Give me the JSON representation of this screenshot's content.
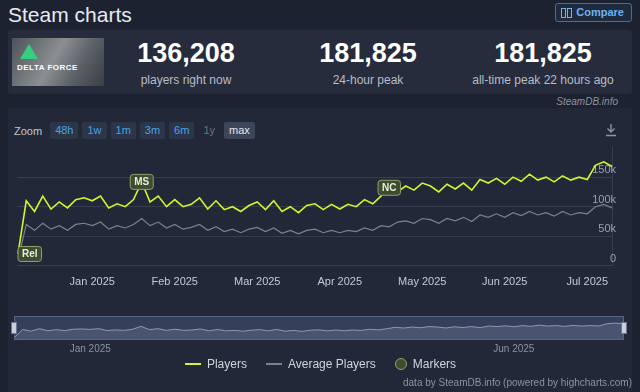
{
  "header": {
    "title": "Steam charts",
    "button": "Compare",
    "game_image_text": "DELTA FORCE"
  },
  "stats": [
    {
      "value": "136,208",
      "label": "players right now"
    },
    {
      "value": "181,825",
      "label": "24-hour peak"
    },
    {
      "value": "181,825",
      "label": "all-time peak 22 hours ago"
    }
  ],
  "chart_panel": {
    "watermark": "SteamDB.info",
    "zoom": {
      "label": "Zoom",
      "buttons": [
        "48h",
        "1w",
        "1m",
        "3m",
        "6m",
        "1y",
        "max"
      ],
      "disabled": "1y",
      "selected": "max"
    },
    "credit": "data by SteamDB.info (powered by highcharts.com)"
  },
  "chart_data": [
    {
      "type": "line",
      "categories": [
        null,
        null,
        null,
        null,
        null,
        null,
        null,
        null,
        null,
        "Jan 2025",
        null,
        null,
        null,
        null,
        null,
        null,
        null,
        null,
        null,
        "Feb 2025",
        null,
        null,
        null,
        null,
        null,
        null,
        null,
        null,
        null,
        "Mar 2025",
        null,
        null,
        null,
        null,
        null,
        null,
        null,
        null,
        null,
        "Apr 2025",
        null,
        null,
        null,
        null,
        null,
        null,
        null,
        null,
        null,
        "May 2025",
        null,
        null,
        null,
        null,
        null,
        null,
        null,
        null,
        null,
        "Jun 2025",
        null,
        null,
        null,
        null,
        null,
        null,
        null,
        null,
        null,
        "Jul 2025",
        null,
        null,
        null
      ],
      "series": [
        {
          "name": "Players",
          "color": "#d4f52c",
          "line_style": "solid",
          "values": [
            20000,
            110000,
            92000,
            118000,
            96000,
            108000,
            98000,
            112000,
            115000,
            110000,
            118000,
            98000,
            105000,
            100000,
            112000,
            142000,
            108000,
            118000,
            100000,
            112000,
            100000,
            104000,
            115000,
            96000,
            110000,
            95000,
            100000,
            92000,
            102000,
            108000,
            95000,
            110000,
            92000,
            100000,
            90000,
            102000,
            105000,
            95000,
            104000,
            96000,
            104000,
            100000,
            112000,
            105000,
            118000,
            132000,
            125000,
            135000,
            128000,
            140000,
            135000,
            125000,
            138000,
            130000,
            140000,
            128000,
            146000,
            140000,
            148000,
            138000,
            150000,
            143000,
            155000,
            145000,
            150000,
            142000,
            152000,
            145000,
            150000,
            146000,
            170000,
            176000,
            168000
          ]
        },
        {
          "name": "Average Players",
          "color": "#7b818e",
          "line_style": "solid",
          "values": [
            10000,
            70000,
            60000,
            72000,
            62000,
            68000,
            60000,
            70000,
            72000,
            68000,
            74000,
            62000,
            68000,
            64000,
            70000,
            80000,
            68000,
            74000,
            64000,
            70000,
            62000,
            65000,
            70000,
            60000,
            66000,
            58000,
            62000,
            56000,
            62000,
            65000,
            58000,
            64000,
            55000,
            60000,
            54000,
            60000,
            62000,
            56000,
            60000,
            56000,
            60000,
            58000,
            64000,
            60000,
            68000,
            66000,
            74000,
            76000,
            72000,
            80000,
            78000,
            72000,
            80000,
            76000,
            82000,
            75000,
            86000,
            82000,
            88000,
            82000,
            90000,
            85000,
            92000,
            86000,
            90000,
            84000,
            92000,
            86000,
            90000,
            88000,
            100000,
            104000,
            98000
          ]
        },
        {
          "name": "Markers",
          "color": "#3e4d30",
          "type": "scatter",
          "marker": "circle",
          "data_labels": true,
          "values": [
            20000,
            null,
            null,
            null,
            null,
            null,
            null,
            null,
            null,
            null,
            null,
            null,
            null,
            null,
            null,
            142000,
            null,
            null,
            null,
            null,
            null,
            null,
            null,
            null,
            null,
            null,
            null,
            null,
            null,
            null,
            null,
            null,
            null,
            null,
            null,
            null,
            null,
            null,
            null,
            null,
            null,
            null,
            null,
            null,
            null,
            132000,
            null,
            null,
            null,
            null,
            null,
            null,
            null,
            null,
            null,
            null,
            null,
            null,
            null,
            null,
            null,
            null,
            null,
            null,
            null,
            null,
            null,
            null,
            null,
            null,
            null,
            null,
            null
          ],
          "value_labels": [
            "Rel",
            null,
            null,
            null,
            null,
            null,
            null,
            null,
            null,
            null,
            null,
            null,
            null,
            null,
            null,
            "MS",
            null,
            null,
            null,
            null,
            null,
            null,
            null,
            null,
            null,
            null,
            null,
            null,
            null,
            null,
            null,
            null,
            null,
            null,
            null,
            null,
            null,
            null,
            null,
            null,
            null,
            null,
            null,
            null,
            null,
            "NC",
            null,
            null,
            null,
            null,
            null,
            null,
            null,
            null,
            null,
            null,
            null,
            null,
            null,
            null,
            null,
            null,
            null,
            null,
            null,
            null,
            null,
            null,
            null,
            null,
            null,
            null,
            null
          ]
        }
      ],
      "ylim": [
        0,
        200000
      ],
      "yticks": [
        0,
        {
          "value": 50000,
          "label": "50k"
        },
        {
          "value": 100000,
          "label": "100k"
        },
        {
          "value": 150000,
          "label": "150k"
        }
      ],
      "grid": true,
      "legend": "bottom"
    },
    {
      "type": "area",
      "categories": [
        null,
        null,
        null,
        null,
        null,
        null,
        null,
        null,
        null,
        "Jan 2025",
        null,
        null,
        null,
        null,
        null,
        null,
        null,
        null,
        null,
        null,
        null,
        null,
        null,
        null,
        null,
        null,
        null,
        null,
        null,
        null,
        null,
        null,
        null,
        null,
        null,
        null,
        null,
        null,
        null,
        null,
        null,
        null,
        null,
        null,
        null,
        null,
        null,
        null,
        null,
        null,
        null,
        null,
        null,
        null,
        null,
        null,
        null,
        null,
        null,
        "Jun 2025",
        null,
        null,
        null,
        null,
        null,
        null,
        null,
        null,
        null,
        null,
        null,
        null,
        null
      ],
      "values": [
        20000,
        110000,
        92000,
        118000,
        96000,
        108000,
        98000,
        112000,
        115000,
        110000,
        118000,
        98000,
        105000,
        100000,
        112000,
        142000,
        108000,
        118000,
        100000,
        112000,
        100000,
        104000,
        115000,
        96000,
        110000,
        95000,
        100000,
        92000,
        102000,
        108000,
        95000,
        110000,
        92000,
        100000,
        90000,
        102000,
        105000,
        95000,
        104000,
        96000,
        104000,
        100000,
        112000,
        105000,
        118000,
        132000,
        125000,
        135000,
        128000,
        140000,
        135000,
        125000,
        138000,
        130000,
        140000,
        128000,
        146000,
        140000,
        148000,
        138000,
        150000,
        143000,
        155000,
        145000,
        150000,
        142000,
        152000,
        145000,
        150000,
        146000,
        170000,
        176000,
        168000
      ],
      "color": "#8d98b5",
      "ylim": [
        0,
        250000
      ],
      "tick_labels": "x"
    }
  ]
}
